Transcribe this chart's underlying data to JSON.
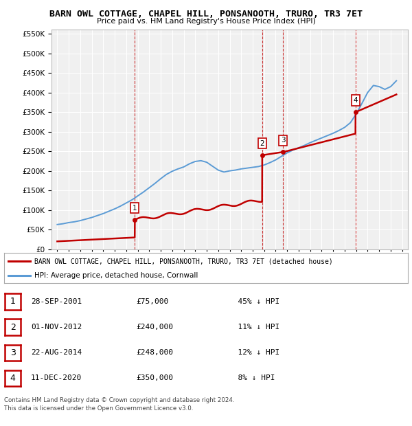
{
  "title": "BARN OWL COTTAGE, CHAPEL HILL, PONSANOOTH, TRURO, TR3 7ET",
  "subtitle": "Price paid vs. HM Land Registry's House Price Index (HPI)",
  "legend_line1": "BARN OWL COTTAGE, CHAPEL HILL, PONSANOOTH, TRURO, TR3 7ET (detached house)",
  "legend_line2": "HPI: Average price, detached house, Cornwall",
  "footer1": "Contains HM Land Registry data © Crown copyright and database right 2024.",
  "footer2": "This data is licensed under the Open Government Licence v3.0.",
  "sales": [
    {
      "num": 1,
      "date": "28-SEP-2001",
      "price": 75000,
      "pct": "45%",
      "dir": "↓"
    },
    {
      "num": 2,
      "date": "01-NOV-2012",
      "price": 240000,
      "pct": "11%",
      "dir": "↓"
    },
    {
      "num": 3,
      "date": "22-AUG-2014",
      "price": 248000,
      "pct": "12%",
      "dir": "↓"
    },
    {
      "num": 4,
      "date": "11-DEC-2020",
      "price": 350000,
      "pct": "8%",
      "dir": "↓"
    }
  ],
  "sale_years": [
    2001.75,
    2012.83,
    2014.64,
    2020.95
  ],
  "hpi_years": [
    1995.0,
    1995.5,
    1996.0,
    1996.5,
    1997.0,
    1997.5,
    1998.0,
    1998.5,
    1999.0,
    1999.5,
    2000.0,
    2000.5,
    2001.0,
    2001.5,
    2002.0,
    2002.5,
    2003.0,
    2003.5,
    2004.0,
    2004.5,
    2005.0,
    2005.5,
    2006.0,
    2006.5,
    2007.0,
    2007.5,
    2008.0,
    2008.5,
    2009.0,
    2009.5,
    2010.0,
    2010.5,
    2011.0,
    2011.5,
    2012.0,
    2012.5,
    2013.0,
    2013.5,
    2014.0,
    2014.5,
    2015.0,
    2015.5,
    2016.0,
    2016.5,
    2017.0,
    2017.5,
    2018.0,
    2018.5,
    2019.0,
    2019.5,
    2020.0,
    2020.5,
    2021.0,
    2021.5,
    2022.0,
    2022.5,
    2023.0,
    2023.5,
    2024.0,
    2024.5
  ],
  "hpi_values": [
    63000,
    65000,
    68000,
    70000,
    73000,
    77000,
    81000,
    86000,
    91000,
    97000,
    103000,
    110000,
    118000,
    126000,
    136000,
    146000,
    157000,
    168000,
    180000,
    191000,
    199000,
    205000,
    210000,
    218000,
    224000,
    226000,
    222000,
    212000,
    202000,
    197000,
    200000,
    202000,
    205000,
    207000,
    209000,
    211000,
    215000,
    221000,
    228000,
    237000,
    246000,
    253000,
    259000,
    265000,
    272000,
    278000,
    284000,
    290000,
    296000,
    303000,
    311000,
    323000,
    345000,
    372000,
    400000,
    418000,
    415000,
    408000,
    415000,
    430000
  ],
  "ylim": [
    0,
    560000
  ],
  "xlim": [
    1994.5,
    2025.5
  ],
  "bg_color": "#ffffff",
  "plot_bg_color": "#f0f0f0",
  "hpi_color": "#5b9bd5",
  "price_color": "#c00000",
  "grid_color": "#ffffff",
  "sale_vline_color": "#c00000"
}
